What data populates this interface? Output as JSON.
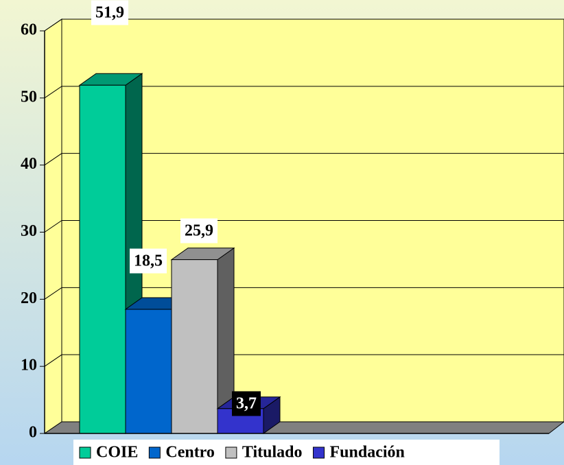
{
  "chart_data": {
    "type": "bar3d",
    "categories": [
      "COIE",
      "Centro",
      "Titulado",
      "Fundación"
    ],
    "values": [
      51.9,
      18.5,
      25.9,
      3.7
    ],
    "value_labels": [
      "51,9",
      "18,5",
      "25,9",
      "3,7"
    ],
    "colors": [
      "#00cc99",
      "#0066cc",
      "#c0c0c0",
      "#3333cc"
    ],
    "ylim": [
      0,
      60
    ],
    "yticks": [
      0,
      10,
      20,
      30,
      40,
      50,
      60
    ],
    "grid": true,
    "legend": "bottom"
  }
}
